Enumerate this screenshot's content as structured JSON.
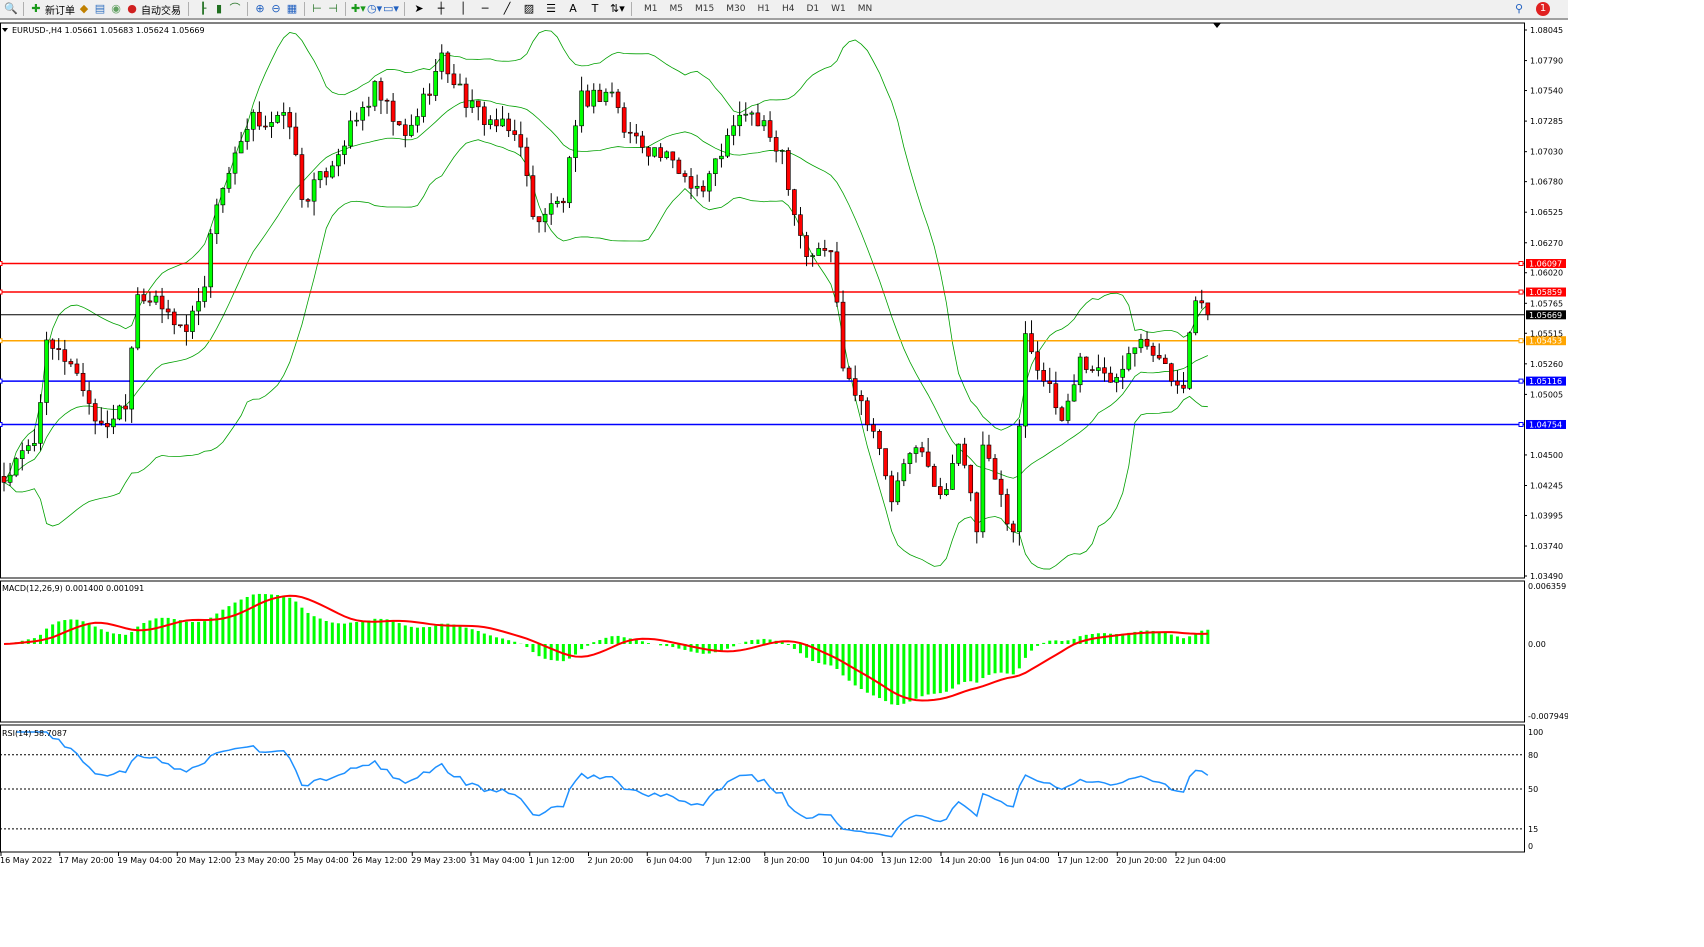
{
  "toolbar": {
    "new_order_label": "新订单",
    "auto_trading_label": "自动交易",
    "timeframes": [
      "M1",
      "M5",
      "M15",
      "M30",
      "H1",
      "H4",
      "D1",
      "W1",
      "MN"
    ],
    "notification_count": "1",
    "icons": [
      "zoom-icon",
      "new-order-icon",
      "market-watch-icon",
      "navigator-icon",
      "signal-icon",
      "auto-trading-icon",
      "bar-chart-icon",
      "candle-chart-icon",
      "line-chart-icon",
      "zoom-in-icon",
      "zoom-out-icon",
      "tile-icon",
      "autoscroll-icon",
      "chart-shift-icon",
      "indicators-icon",
      "periods-icon",
      "templates-icon",
      "cursor-icon",
      "crosshair-icon",
      "vertical-line-icon",
      "horizontal-line-icon",
      "trendline-icon",
      "equidistant-channel-icon",
      "fibonacci-icon",
      "text-icon",
      "text-label-icon",
      "arrows-icon",
      "search-icon",
      "chat-icon"
    ]
  },
  "chart": {
    "header": "EURUSD-,H4  1.05661 1.05683 1.05624 1.05669",
    "macd_header": "MACD(12,26,9) 0.001400 0.001091",
    "rsi_header": "RSI(14) 58.7087"
  },
  "chart_data": {
    "type": "candlestick",
    "symbol": "EURUSD-",
    "timeframe": "H4",
    "ohlc_last": {
      "open": 1.05661,
      "high": 1.05683,
      "low": 1.05624,
      "close": 1.05669
    },
    "price_axis": [
      "1.08045",
      "1.07790",
      "1.07540",
      "1.07285",
      "1.07030",
      "1.06780",
      "1.06525",
      "1.06270",
      "1.06020",
      "1.05765",
      "1.05515",
      "1.05260",
      "1.05005",
      "1.04500",
      "1.04245",
      "1.03995",
      "1.03740",
      "1.03490"
    ],
    "ylim": [
      1.0349,
      1.08045
    ],
    "close_path_approx": [
      [
        0,
        1.0429
      ],
      [
        5,
        1.0462
      ],
      [
        7,
        1.0538
      ],
      [
        11,
        1.0529
      ],
      [
        16,
        1.0471
      ],
      [
        20,
        1.0496
      ],
      [
        22,
        1.0588
      ],
      [
        26,
        1.0571
      ],
      [
        30,
        1.0554
      ],
      [
        33,
        1.0596
      ],
      [
        35,
        1.0663
      ],
      [
        41,
        1.0729
      ],
      [
        47,
        1.0729
      ],
      [
        49,
        1.0663
      ],
      [
        52,
        1.0679
      ],
      [
        57,
        1.0721
      ],
      [
        61,
        1.0754
      ],
      [
        66,
        1.0713
      ],
      [
        72,
        1.078
      ],
      [
        77,
        1.0738
      ],
      [
        85,
        1.0713
      ],
      [
        87,
        1.0646
      ],
      [
        92,
        1.0663
      ],
      [
        95,
        1.0746
      ],
      [
        100,
        1.0754
      ],
      [
        102,
        1.0721
      ],
      [
        108,
        1.07
      ],
      [
        115,
        1.0671
      ],
      [
        118,
        1.0704
      ],
      [
        122,
        1.0738
      ],
      [
        128,
        1.0704
      ],
      [
        130,
        1.0654
      ],
      [
        132,
        1.0617
      ],
      [
        136,
        1.0621
      ],
      [
        138,
        1.0529
      ],
      [
        143,
        1.0471
      ],
      [
        146,
        1.0412
      ],
      [
        150,
        1.0462
      ],
      [
        154,
        1.0412
      ],
      [
        157,
        1.0462
      ],
      [
        160,
        1.0387
      ],
      [
        161,
        1.0454
      ],
      [
        166,
        1.0387
      ],
      [
        168,
        1.0554
      ],
      [
        171,
        1.0513
      ],
      [
        174,
        1.0479
      ],
      [
        177,
        1.0529
      ],
      [
        182,
        1.0513
      ],
      [
        187,
        1.0554
      ],
      [
        192,
        1.0513
      ],
      [
        194,
        1.0513
      ],
      [
        196,
        1.0579
      ],
      [
        198,
        1.05669
      ]
    ],
    "levels": [
      {
        "price": "1.06097",
        "color": "#ff0000"
      },
      {
        "price": "1.05859",
        "color": "#ff0000"
      },
      {
        "price": "1.05669",
        "color": "#000000"
      },
      {
        "price": "1.05453",
        "color": "#ffa500"
      },
      {
        "price": "1.05116",
        "color": "#0000ff"
      },
      {
        "price": "1.04754",
        "color": "#0000ff"
      }
    ],
    "indicators": {
      "bollinger": {
        "color": "#00a000"
      },
      "macd": {
        "params": "12,26,9",
        "main": 0.0014,
        "signal": 0.001091,
        "axis": [
          "0.006359",
          "0.00",
          "-0.007949"
        ],
        "hist_color": "#00ff00",
        "signal_color": "#ff0000"
      },
      "rsi": {
        "period": 14,
        "value": 58.7087,
        "axis": [
          "100",
          "80",
          "50",
          "15",
          "0"
        ],
        "levels": [
          80,
          50,
          15
        ],
        "color": "#1e90ff"
      }
    },
    "time_axis": [
      "16 May 2022",
      "17 May 20:00",
      "19 May 04:00",
      "20 May 12:00",
      "23 May 20:00",
      "25 May 04:00",
      "26 May 12:00",
      "29 May 23:00",
      "31 May 04:00",
      "1 Jun 12:00",
      "2 Jun 20:00",
      "6 Jun 04:00",
      "7 Jun 12:00",
      "8 Jun 20:00",
      "10 Jun 04:00",
      "13 Jun 12:00",
      "14 Jun 20:00",
      "16 Jun 04:00",
      "17 Jun 12:00",
      "20 Jun 20:00",
      "22 Jun 04:00"
    ],
    "colors": {
      "bull": "#00ff00",
      "bear": "#ff0000",
      "outline": "#000000"
    }
  }
}
